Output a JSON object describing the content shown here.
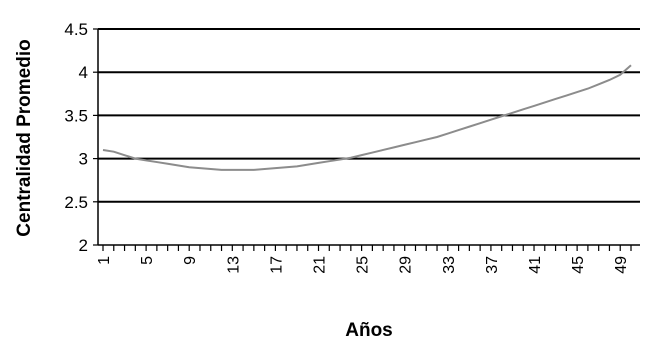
{
  "chart_data": {
    "type": "line",
    "xlabel": "Años",
    "ylabel": "Centralidad Promedio",
    "ylim": [
      2,
      4.5
    ],
    "yticks": [
      "2",
      "2.5",
      "3",
      "3.5",
      "4",
      "4.5"
    ],
    "grid": true,
    "x_tick_labels": [
      "1",
      "5",
      "9",
      "13",
      "17",
      "21",
      "25",
      "29",
      "33",
      "37",
      "41",
      "45",
      "49"
    ],
    "series": [
      {
        "color": "#8c8c8c",
        "x": [
          1,
          2,
          3,
          4,
          5,
          6,
          7,
          8,
          9,
          10,
          11,
          12,
          13,
          14,
          15,
          16,
          17,
          18,
          19,
          20,
          21,
          22,
          23,
          24,
          25,
          26,
          27,
          28,
          29,
          30,
          31,
          32,
          33,
          34,
          35,
          36,
          37,
          38,
          39,
          40,
          41,
          42,
          43,
          44,
          45,
          46,
          47,
          48,
          49,
          50
        ],
        "values": [
          3.1,
          3.08,
          3.04,
          3.0,
          2.98,
          2.96,
          2.94,
          2.92,
          2.9,
          2.89,
          2.88,
          2.87,
          2.87,
          2.87,
          2.87,
          2.88,
          2.89,
          2.9,
          2.91,
          2.93,
          2.95,
          2.97,
          2.99,
          3.01,
          3.04,
          3.07,
          3.1,
          3.13,
          3.16,
          3.19,
          3.22,
          3.25,
          3.29,
          3.33,
          3.37,
          3.41,
          3.45,
          3.49,
          3.53,
          3.57,
          3.61,
          3.65,
          3.69,
          3.73,
          3.77,
          3.81,
          3.86,
          3.91,
          3.97,
          4.08
        ]
      }
    ]
  }
}
